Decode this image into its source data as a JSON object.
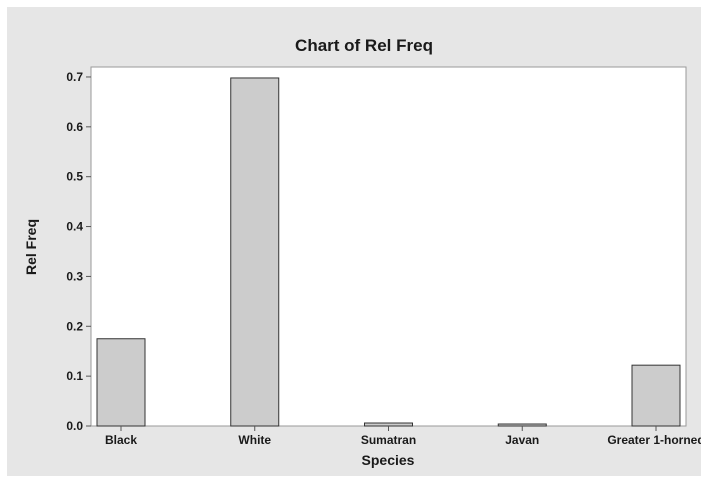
{
  "chart_data": {
    "type": "bar",
    "title": "Chart of Rel Freq",
    "xlabel": "Species",
    "ylabel": "Rel Freq",
    "categories": [
      "Black",
      "White",
      "Sumatran",
      "Javan",
      "Greater 1-horned"
    ],
    "values": [
      0.175,
      0.698,
      0.006,
      0.004,
      0.122
    ],
    "ylim": [
      0,
      0.72
    ],
    "yticks": [
      "0.0",
      "0.1",
      "0.2",
      "0.3",
      "0.4",
      "0.5",
      "0.6",
      "0.7"
    ],
    "grid": false,
    "bar_color": "#cccccc",
    "bar_edge_color": "#333333",
    "plot_background": "#ffffff",
    "figure_background": "#e6e6e6"
  }
}
